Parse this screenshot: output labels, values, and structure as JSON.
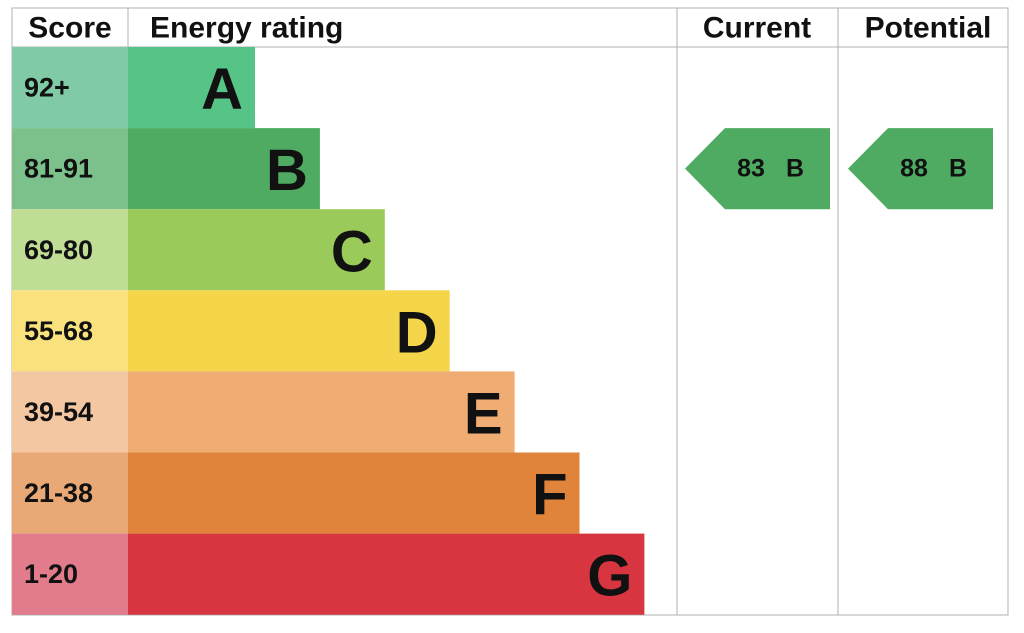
{
  "headers": {
    "score": "Score",
    "rating": "Energy rating",
    "current": "Current",
    "potential": "Potential"
  },
  "rows": [
    {
      "score": "92+",
      "letter": "A",
      "color": "#55c486",
      "score_color": "#80cba6"
    },
    {
      "score": "81-91",
      "letter": "B",
      "color": "#4fab62",
      "score_color": "#7cc18c"
    },
    {
      "score": "69-80",
      "letter": "C",
      "color": "#9acb5a",
      "score_color": "#c0dd96"
    },
    {
      "score": "55-68",
      "letter": "D",
      "color": "#f5d64b",
      "score_color": "#f9e27e"
    },
    {
      "score": "39-54",
      "letter": "E",
      "color": "#efad73",
      "score_color": "#f3c7a2"
    },
    {
      "score": "21-38",
      "letter": "F",
      "color": "#e0843b",
      "score_color": "#e9a977"
    },
    {
      "score": "1-20",
      "letter": "G",
      "color": "#d7353f",
      "score_color": "#e27b8b"
    }
  ],
  "current": {
    "score": 83,
    "letter": "B"
  },
  "potential": {
    "score": 88,
    "letter": "B"
  }
}
